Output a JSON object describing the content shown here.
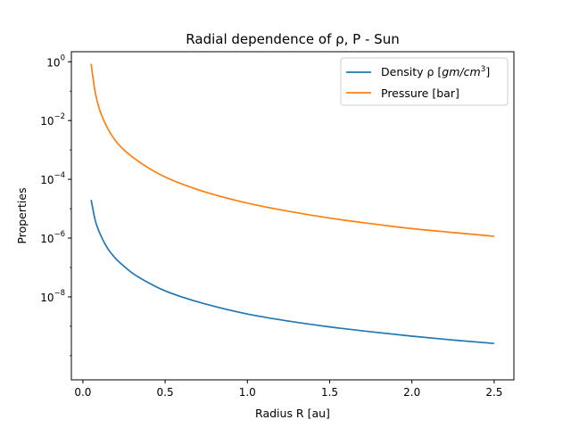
{
  "chart_data": {
    "type": "line",
    "title": "Radial dependence of ρ, P - Sun",
    "xlabel": "Radius R [au]",
    "ylabel": "Properties",
    "xlim": [
      -0.07,
      2.62
    ],
    "ylim": [
      1.5e-11,
      2.2
    ],
    "yscale": "log",
    "x_ticks": [
      0.0,
      0.5,
      1.0,
      1.5,
      2.0,
      2.5
    ],
    "x_tick_labels": [
      "0.0",
      "0.5",
      "1.0",
      "1.5",
      "2.0",
      "2.5"
    ],
    "y_ticks": [
      1,
      0.01,
      0.0001,
      1e-06,
      1e-08
    ],
    "y_tick_bases": [
      "10",
      "10",
      "10",
      "10",
      "10"
    ],
    "y_tick_exps": [
      "0",
      "−2",
      "−4",
      "−6",
      "−8"
    ],
    "grid": false,
    "legend_position": "top-right",
    "legend": {
      "density_text": "Density ρ [",
      "density_unit": "gm/cm",
      "density_exp": "3",
      "density_close": "]"
    },
    "series": [
      {
        "name": "Density ρ [gm/cm³]",
        "color": "#1f77b4",
        "x": [
          0.05,
          0.075,
          0.1,
          0.15,
          0.2,
          0.25,
          0.3,
          0.4,
          0.5,
          0.6,
          0.75,
          1.0,
          1.25,
          1.5,
          1.75,
          2.0,
          2.25,
          2.5
        ],
        "y": [
          2e-05,
          4e-06,
          1.6e-06,
          4.5e-07,
          2e-07,
          1.1e-07,
          6.5e-08,
          3e-08,
          1.6e-08,
          1e-08,
          5.6e-09,
          2.6e-09,
          1.5e-09,
          9.5e-10,
          6.5e-10,
          4.6e-10,
          3.4e-10,
          2.6e-10
        ]
      },
      {
        "name": "Pressure [bar]",
        "color": "#ff7f0e",
        "x": [
          0.05,
          0.075,
          0.1,
          0.15,
          0.2,
          0.25,
          0.3,
          0.4,
          0.5,
          0.6,
          0.75,
          1.0,
          1.25,
          1.5,
          1.75,
          2.0,
          2.25,
          2.5
        ],
        "y": [
          0.85,
          0.09,
          0.025,
          0.0055,
          0.002,
          0.001,
          0.00058,
          0.00024,
          0.00012,
          7e-05,
          3.6e-05,
          1.55e-05,
          8.2e-06,
          4.8e-06,
          3.1e-06,
          2.1e-06,
          1.55e-06,
          1.15e-06
        ]
      }
    ]
  }
}
